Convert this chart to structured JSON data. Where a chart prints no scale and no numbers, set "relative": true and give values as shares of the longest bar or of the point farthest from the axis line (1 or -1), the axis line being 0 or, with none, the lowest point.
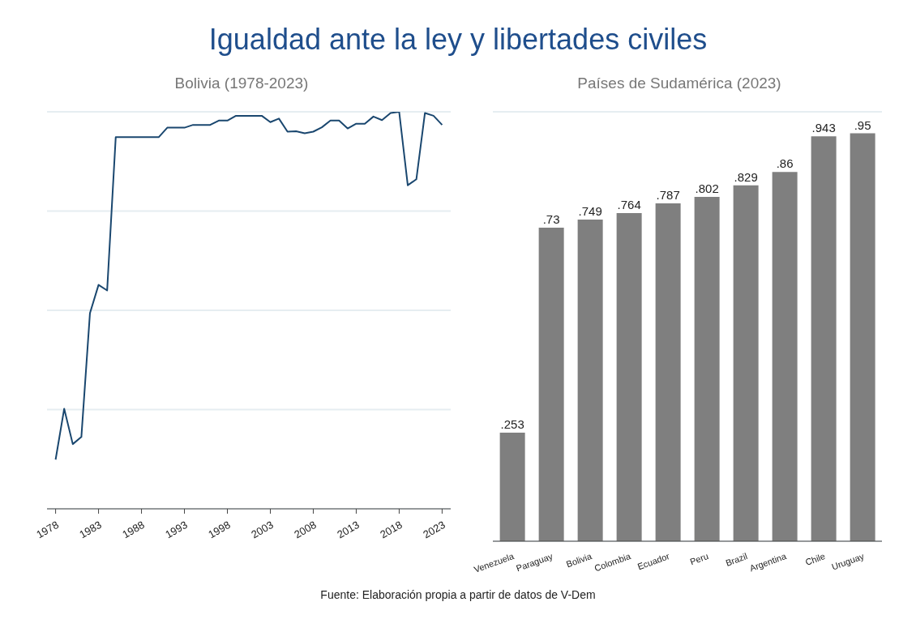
{
  "chart_data": [
    {
      "type": "line",
      "title": "Igualdad ante la ley y libertades civiles",
      "subtitle": "Bolivia (1978-2023)",
      "relative": true,
      "grid": "y",
      "legend": false,
      "marker": "none",
      "line_style": "solid",
      "xlim": [
        1977,
        2024
      ],
      "xticks": [
        1978,
        1983,
        1988,
        1993,
        1998,
        2003,
        2008,
        2013,
        2018,
        2023
      ],
      "x": [
        1978,
        1979,
        1980,
        1981,
        1982,
        1983,
        1984,
        1985,
        1986,
        1987,
        1988,
        1989,
        1990,
        1991,
        1992,
        1993,
        1994,
        1995,
        1996,
        1997,
        1998,
        1999,
        2000,
        2001,
        2002,
        2003,
        2004,
        2005,
        2006,
        2007,
        2008,
        2009,
        2010,
        2011,
        2012,
        2013,
        2014,
        2015,
        2016,
        2017,
        2018,
        2019,
        2020,
        2021,
        2022,
        2023
      ],
      "series": [
        {
          "color": "#1a476f",
          "values": [
            0.124,
            0.252,
            0.163,
            0.181,
            0.493,
            0.564,
            0.55,
            0.936,
            0.936,
            0.936,
            0.936,
            0.936,
            0.936,
            0.96,
            0.96,
            0.96,
            0.967,
            0.967,
            0.967,
            0.978,
            0.978,
            0.99,
            0.99,
            0.99,
            0.99,
            0.974,
            0.983,
            0.95,
            0.951,
            0.946,
            0.95,
            0.961,
            0.978,
            0.978,
            0.958,
            0.97,
            0.97,
            0.988,
            0.979,
            0.997,
            1.0,
            0.815,
            0.83,
            0.997,
            0.99,
            0.967
          ]
        }
      ]
    },
    {
      "type": "bar",
      "title": "Países de Sudamérica (2023)",
      "grid": "y",
      "legend": false,
      "tick_labels": "x",
      "categories": [
        "Venezuela",
        "Paraguay",
        "Bolivia",
        "Colombia",
        "Ecuador",
        "Peru",
        "Brazil",
        "Argentina",
        "Chile",
        "Uruguay"
      ],
      "values": [
        0.253,
        0.73,
        0.749,
        0.764,
        0.787,
        0.802,
        0.829,
        0.86,
        0.943,
        0.95
      ],
      "value_labels": [
        ".253",
        ".73",
        ".749",
        ".764",
        ".787",
        ".802",
        ".829",
        ".86",
        ".943",
        ".95"
      ],
      "color": "#7f7f7f",
      "ylim": [
        0,
        1
      ],
      "annotations": [
        "Fuente: Elaboración propia a partir de datos de V-Dem"
      ]
    }
  ]
}
